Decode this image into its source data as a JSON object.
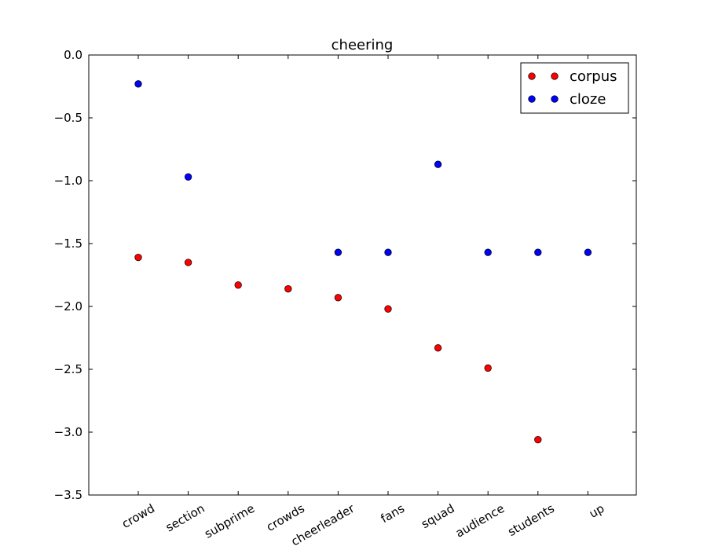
{
  "chart_data": {
    "type": "scatter",
    "title": "cheering",
    "xlabel": "",
    "ylabel": "",
    "categories": [
      "crowd",
      "section",
      "subprime",
      "crowds",
      "cheerleader",
      "fans",
      "squad",
      "audience",
      "students",
      "up"
    ],
    "ylim": [
      -3.5,
      0.0
    ],
    "yticks": [
      "0.0",
      "−0.5",
      "−1.0",
      "−1.5",
      "−2.0",
      "−2.5",
      "−3.0",
      "−3.5"
    ],
    "ytick_values": [
      0.0,
      -0.5,
      -1.0,
      -1.5,
      -2.0,
      -2.5,
      -3.0,
      -3.5
    ],
    "grid": false,
    "legend_position": "top-right",
    "series": [
      {
        "name": "corpus",
        "color": "#ff0000",
        "values": [
          -1.61,
          -1.65,
          -1.83,
          -1.86,
          -1.93,
          -2.02,
          -2.33,
          -2.49,
          -3.06,
          null
        ]
      },
      {
        "name": "cloze",
        "color": "#0000ff",
        "values": [
          -0.23,
          -0.97,
          null,
          null,
          -1.57,
          -1.57,
          -0.87,
          -1.57,
          -1.57,
          -1.57
        ]
      }
    ]
  }
}
